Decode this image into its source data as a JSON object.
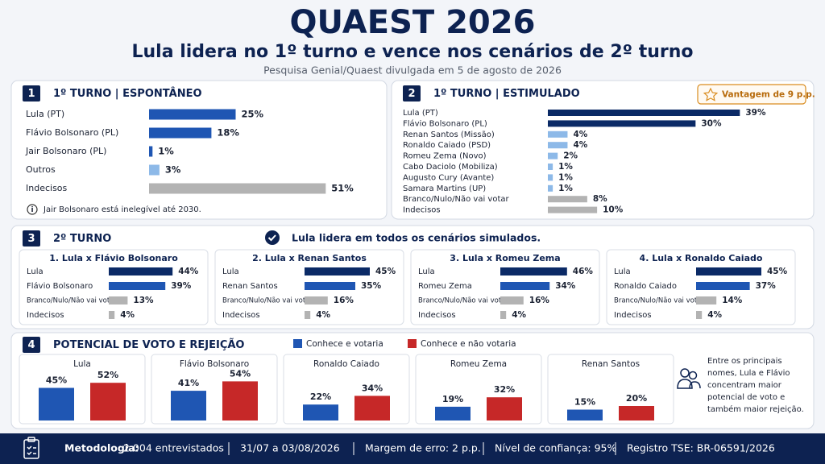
{
  "header": {
    "title": "QUAEST 2026",
    "subtitle": "Lula lidera no 1º turno e vence nos cenários de 2º turno",
    "source": "Pesquisa Genial/Quaest divulgada em 5 de agosto de 2026"
  },
  "chart_data": [
    {
      "type": "hbar",
      "number": "1",
      "title": "1º TURNO | ESPONTÂNEO",
      "categories": [
        "Lula (PT)",
        "Flávio Bolsonaro (PL)",
        "Jair Bolsonaro (PL)",
        "Outros",
        "Indecisos"
      ],
      "values": [
        25,
        18,
        1,
        3,
        51
      ],
      "value_labels": [
        "25%",
        "18%",
        "1%",
        "3%",
        "51%"
      ],
      "colors": [
        "#1f56b3",
        "#1f56b3",
        "#1f56b3",
        "#8db9e8",
        "#b3b3b3"
      ],
      "xlim": [
        0,
        60
      ],
      "note": "Jair Bolsonaro está inelegível até 2030."
    },
    {
      "type": "hbar",
      "number": "2",
      "title": "1º TURNO | ESTIMULADO",
      "badge": "Vantagem de 9 p.p.",
      "categories": [
        "Lula (PT)",
        "Flávio Bolsonaro (PL)",
        "Renan Santos (Missão)",
        "Ronaldo Caiado (PSD)",
        "Romeu Zema (Novo)",
        "Cabo Daciolo (Mobiliza)",
        "Augusto Cury (Avante)",
        "Samara Martins (UP)",
        "Branco/Nulo/Não vai votar",
        "Indecisos"
      ],
      "values": [
        39,
        30,
        4,
        4,
        2,
        1,
        1,
        1,
        8,
        10
      ],
      "value_labels": [
        "39%",
        "30%",
        "4%",
        "4%",
        "2%",
        "1%",
        "1%",
        "1%",
        "8%",
        "10%"
      ],
      "colors": [
        "#0b2a66",
        "#0b2a66",
        "#8db9e8",
        "#8db9e8",
        "#8db9e8",
        "#8db9e8",
        "#8db9e8",
        "#8db9e8",
        "#b3b3b3",
        "#b3b3b3"
      ],
      "xlim": [
        0,
        45
      ]
    },
    {
      "type": "hbar-panels",
      "number": "3",
      "title": "2º TURNO",
      "note": "Lula lidera em todos os cenários simulados.",
      "xlim": [
        0,
        50
      ],
      "colors": [
        "#0b2a66",
        "#1f56b3",
        "#b3b3b3",
        "#b3b3b3"
      ],
      "panels": [
        {
          "title": "1. Lula x Flávio Bolsonaro",
          "categories": [
            "Lula",
            "Flávio Bolsonaro",
            "Branco/Nulo/Não vai votar",
            "Indecisos"
          ],
          "values": [
            44,
            39,
            13,
            4
          ],
          "value_labels": [
            "44%",
            "39%",
            "13%",
            "4%"
          ]
        },
        {
          "title": "2. Lula x Renan Santos",
          "categories": [
            "Lula",
            "Renan Santos",
            "Branco/Nulo/Não vai votar",
            "Indecisos"
          ],
          "values": [
            45,
            35,
            16,
            4
          ],
          "value_labels": [
            "45%",
            "35%",
            "16%",
            "4%"
          ]
        },
        {
          "title": "3. Lula x Romeu Zema",
          "categories": [
            "Lula",
            "Romeu Zema",
            "Branco/Nulo/Não vai votar",
            "Indecisos"
          ],
          "values": [
            46,
            34,
            16,
            4
          ],
          "value_labels": [
            "46%",
            "34%",
            "16%",
            "4%"
          ]
        },
        {
          "title": "4. Lula x Ronaldo Caiado",
          "categories": [
            "Lula",
            "Ronaldo Caiado",
            "Branco/Nulo/Não vai votar",
            "Indecisos"
          ],
          "values": [
            45,
            37,
            14,
            4
          ],
          "value_labels": [
            "45%",
            "37%",
            "14%",
            "4%"
          ]
        }
      ]
    },
    {
      "type": "grouped-bar",
      "number": "4",
      "title": "POTENCIAL DE VOTO E REJEIÇÃO",
      "ylim": [
        0,
        60
      ],
      "categories": [
        "Lula",
        "Flávio Bolsonaro",
        "Ronaldo Caiado",
        "Romeu Zema",
        "Renan Santos"
      ],
      "series": [
        {
          "name": "Conhece e votaria",
          "color": "#1f56b3",
          "values": [
            45,
            41,
            22,
            19,
            15
          ],
          "value_labels": [
            "45%",
            "41%",
            "22%",
            "19%",
            "15%"
          ]
        },
        {
          "name": "Conhece e não votaria",
          "color": "#c62828",
          "values": [
            52,
            54,
            34,
            32,
            20
          ],
          "value_labels": [
            "52%",
            "54%",
            "34%",
            "32%",
            "20%"
          ]
        }
      ],
      "note": "Entre os principais nomes, Lula e Flávio concentram maior potencial de voto e também maior rejeição."
    }
  ],
  "footer": {
    "label": "Metodologia:",
    "items": [
      "2.004 entrevistados",
      "31/07 a 03/08/2026",
      "Margem de erro: 2 p.p.",
      "Nível de confiança: 95%",
      "Registro TSE: BR-06591/2026"
    ]
  }
}
